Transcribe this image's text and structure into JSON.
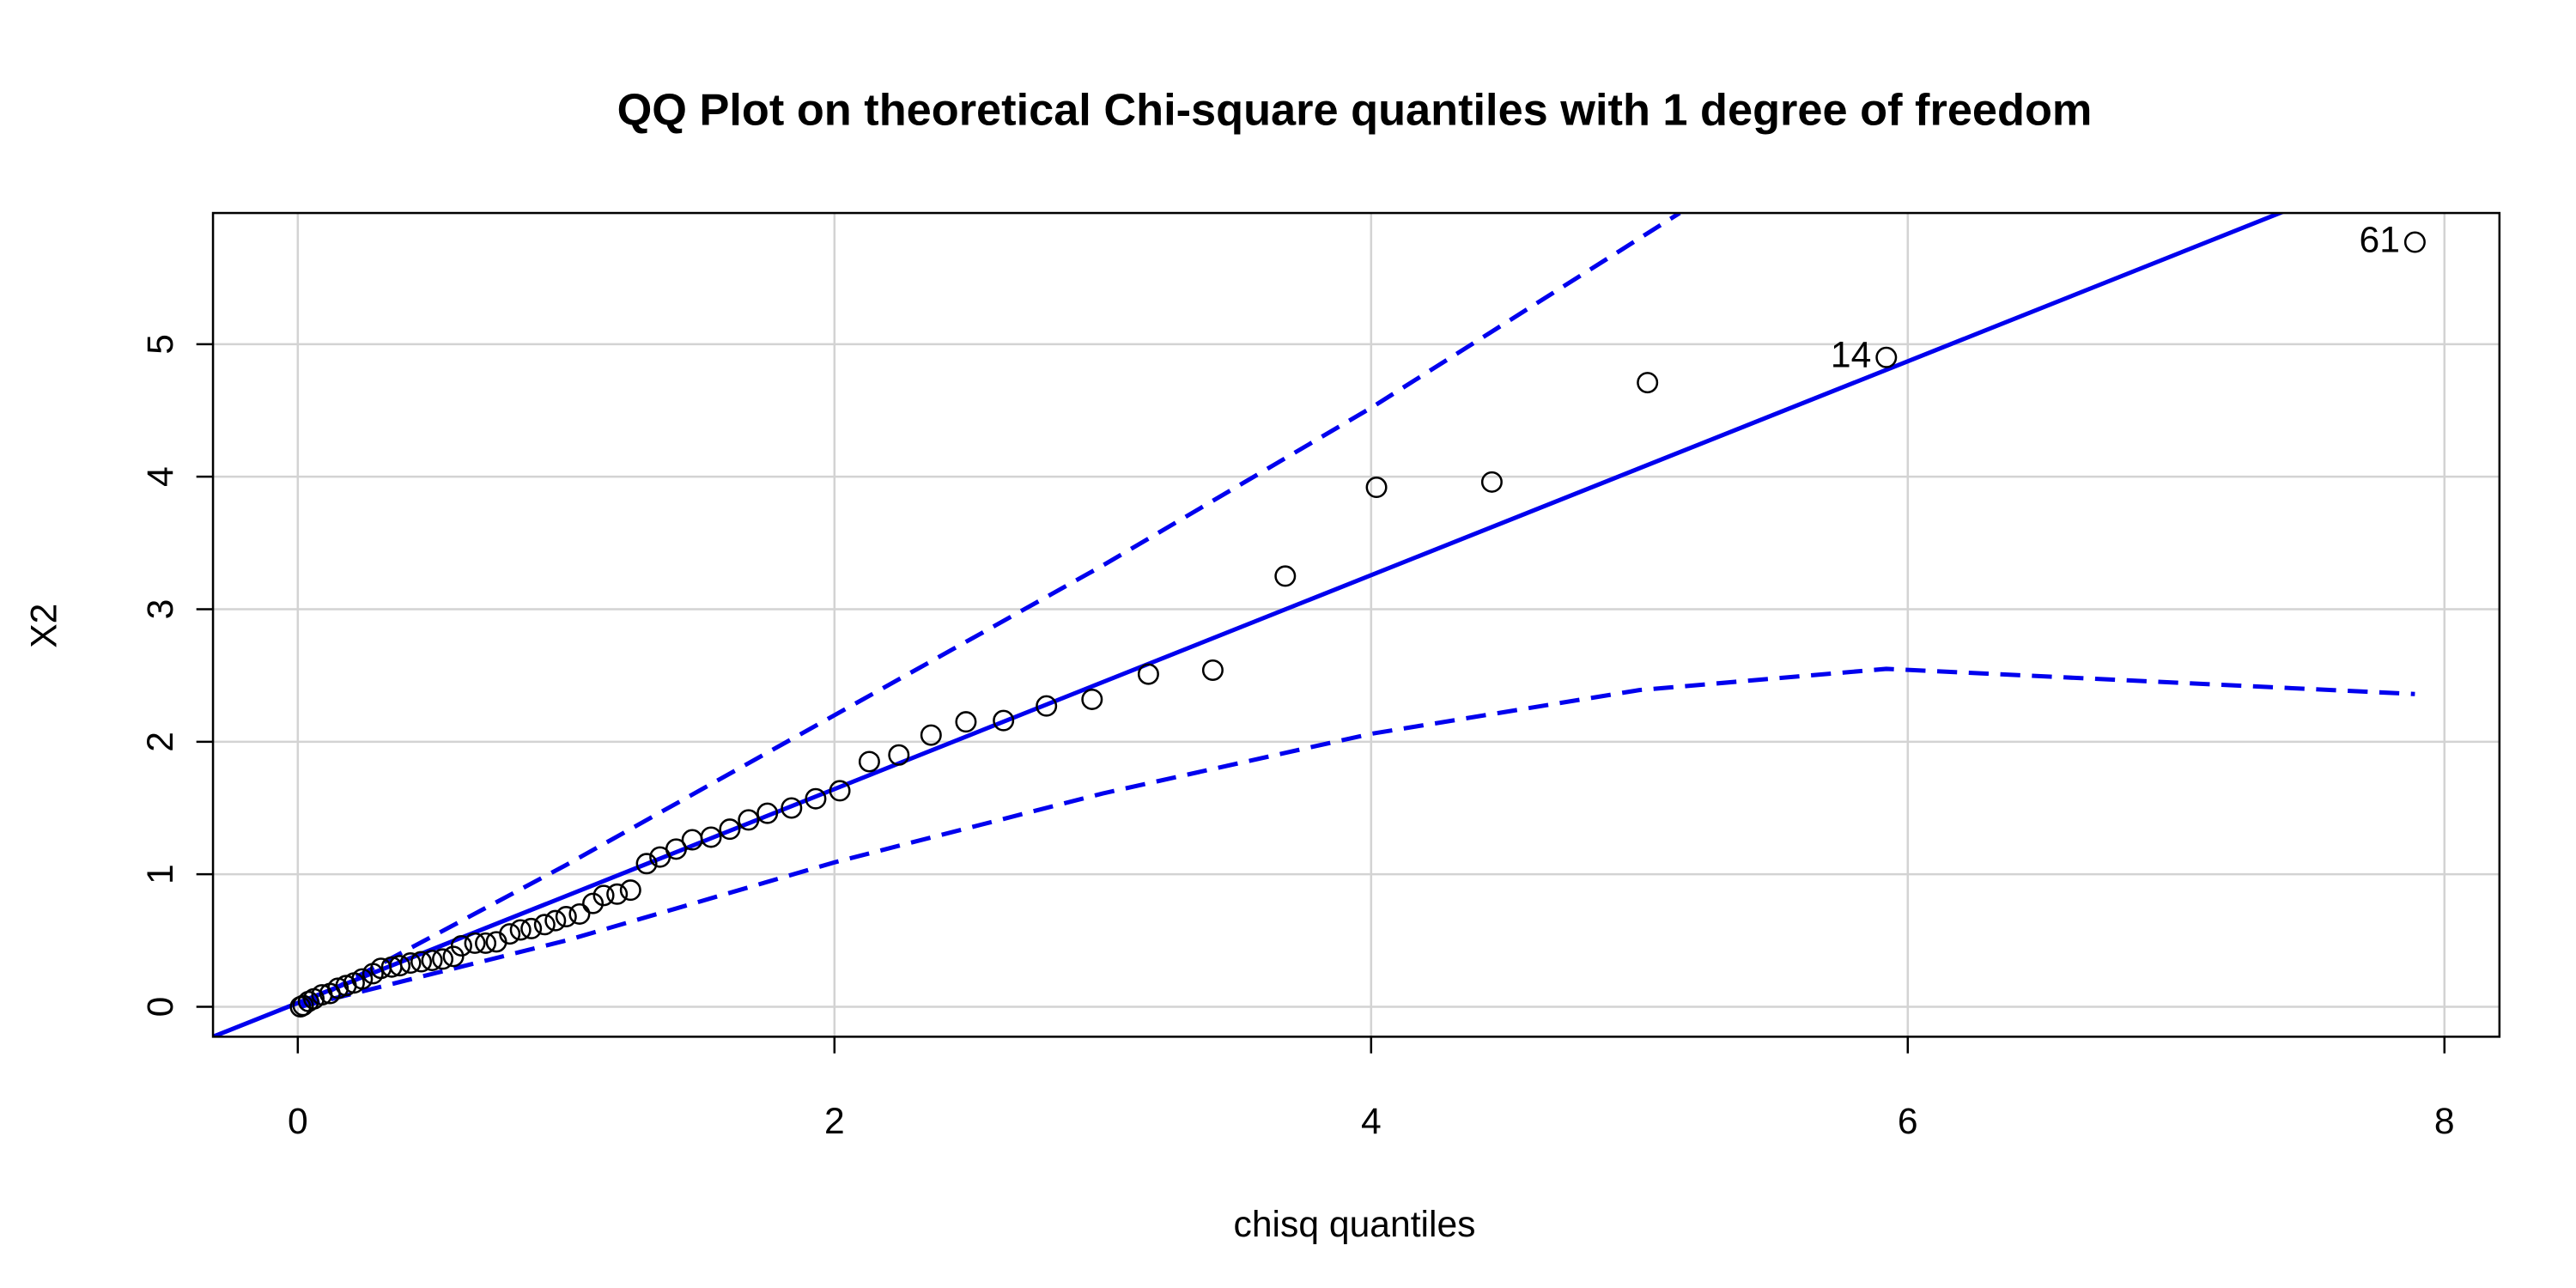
{
  "chart_data": {
    "type": "scatter",
    "title": "QQ Plot on theoretical Chi-square quantiles with 1 degree of freedom",
    "xlabel": "chisq quantiles",
    "ylabel": "X2",
    "xlim": [
      -0.316,
      8.205
    ],
    "ylim": [
      -0.226,
      5.99
    ],
    "xticks": [
      0,
      2,
      4,
      6,
      8
    ],
    "yticks": [
      0,
      1,
      2,
      3,
      4,
      5
    ],
    "grid": true,
    "point_color": "#000000",
    "x": [
      7.89,
      5.92,
      5.03,
      4.45,
      4.02,
      3.68,
      3.41,
      3.17,
      2.96,
      2.79,
      2.63,
      2.49,
      2.36,
      2.24,
      2.13,
      2.02,
      1.93,
      1.84,
      1.75,
      1.68,
      1.61,
      1.54,
      1.47,
      1.41,
      1.35,
      1.3,
      1.24,
      1.19,
      1.14,
      1.1,
      1.05,
      1.0,
      0.96,
      0.92,
      0.87,
      0.83,
      0.79,
      0.74,
      0.7,
      0.66,
      0.61,
      0.58,
      0.54,
      0.5,
      0.46,
      0.42,
      0.38,
      0.35,
      0.31,
      0.28,
      0.24,
      0.21,
      0.18,
      0.15,
      0.12,
      0.09,
      0.06,
      0.04,
      0.02,
      0.01
    ],
    "y": [
      5.77,
      4.9,
      4.71,
      3.96,
      3.92,
      3.25,
      2.54,
      2.51,
      2.32,
      2.27,
      2.16,
      2.15,
      2.05,
      1.9,
      1.85,
      1.63,
      1.57,
      1.5,
      1.46,
      1.41,
      1.34,
      1.28,
      1.26,
      1.19,
      1.13,
      1.08,
      0.88,
      0.85,
      0.84,
      0.78,
      0.7,
      0.68,
      0.65,
      0.62,
      0.59,
      0.58,
      0.55,
      0.49,
      0.48,
      0.48,
      0.46,
      0.38,
      0.36,
      0.35,
      0.34,
      0.33,
      0.31,
      0.3,
      0.29,
      0.25,
      0.21,
      0.18,
      0.16,
      0.14,
      0.1,
      0.09,
      0.06,
      0.04,
      0.01,
      0.0
    ],
    "point_labels": [
      "61",
      "14",
      null,
      null,
      null,
      null,
      null,
      null,
      null,
      null,
      null,
      null,
      null,
      null,
      null,
      null,
      null,
      null,
      null,
      null,
      null,
      null,
      null,
      null,
      null,
      null,
      null,
      null,
      null,
      null,
      null,
      null,
      null,
      null,
      null,
      null,
      null,
      null,
      null,
      null,
      null,
      null,
      null,
      null,
      null,
      null,
      null,
      null,
      null,
      null,
      null,
      null,
      null,
      null,
      null,
      null,
      null,
      null,
      null,
      null
    ],
    "line_color": "#0000ee",
    "reference_line": {
      "intercept": 0.029,
      "slope": 0.807
    },
    "envelope": [
      {
        "x": [
          0.01,
          1,
          2,
          3,
          4,
          5.15
        ],
        "y": [
          0.0,
          1.07,
          2.2,
          3.33,
          4.52,
          5.99
        ]
      },
      {
        "x": [
          0.01,
          1,
          2,
          3,
          4,
          5,
          5.92,
          7.89
        ],
        "y": [
          0.0,
          0.5,
          1.09,
          1.61,
          2.06,
          2.39,
          2.55,
          2.36
        ]
      }
    ]
  }
}
